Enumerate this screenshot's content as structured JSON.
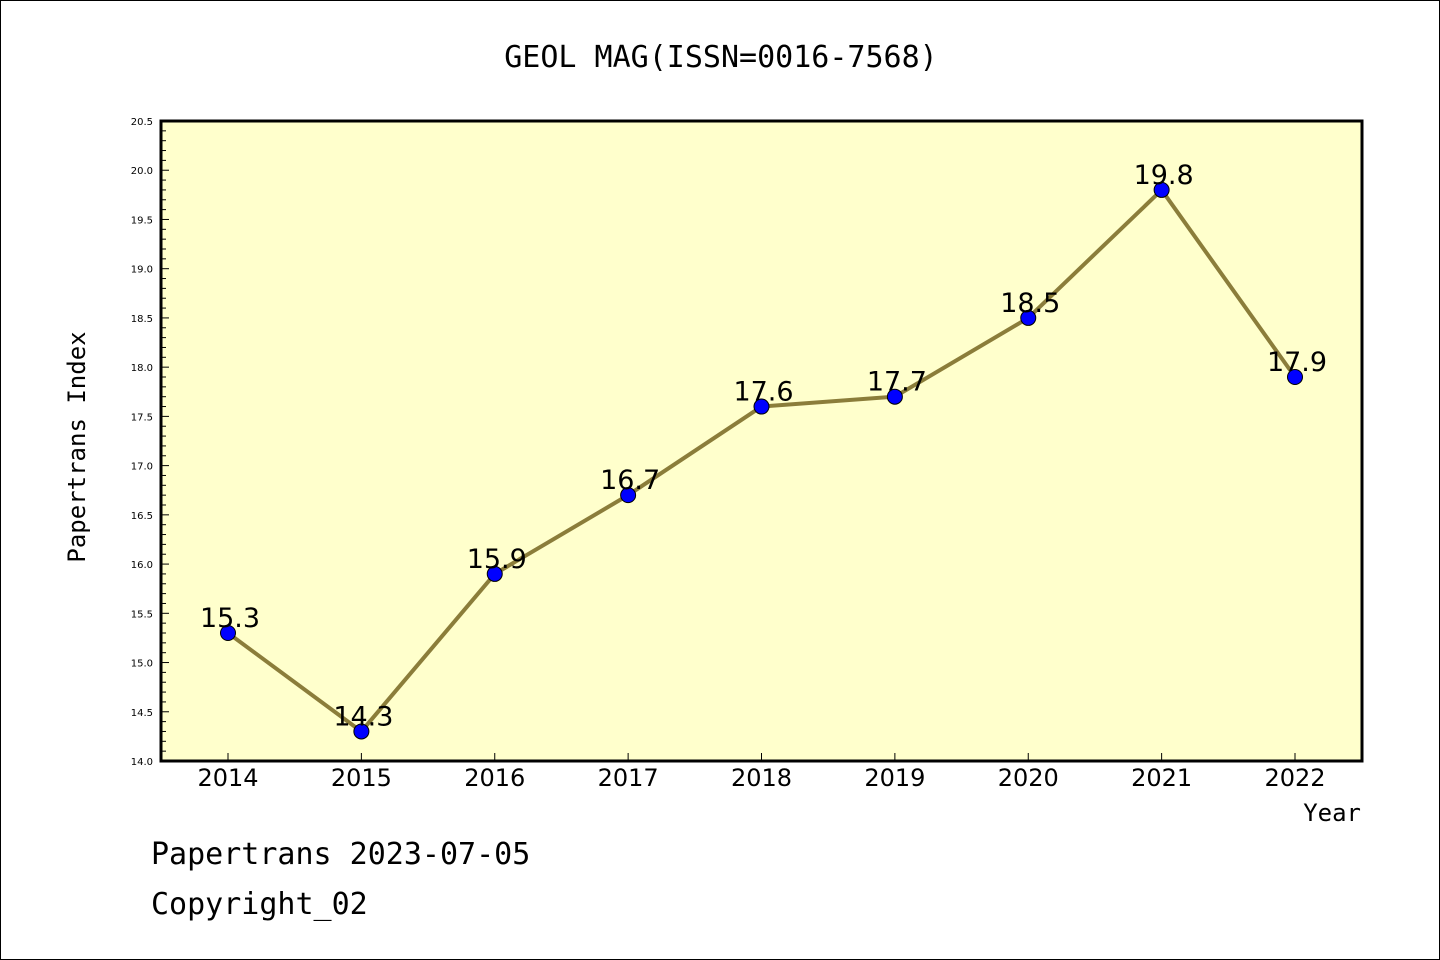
{
  "chart_data": {
    "type": "line",
    "title": "GEOL MAG(ISSN=0016-7568)",
    "xlabel": "Year",
    "ylabel": "Papertrans Index",
    "categories": [
      "2014",
      "2015",
      "2016",
      "2017",
      "2018",
      "2019",
      "2020",
      "2021",
      "2022"
    ],
    "values": [
      15.3,
      14.3,
      15.9,
      16.7,
      17.6,
      17.7,
      18.5,
      19.8,
      17.9
    ],
    "data_labels": [
      "15.3",
      "14.3",
      "15.9",
      "16.7",
      "17.6",
      "17.7",
      "18.5",
      "19.8",
      "17.9"
    ],
    "ylim": [
      14.0,
      20.5
    ],
    "yticks": [
      "14.0",
      "14.5",
      "15.0",
      "15.5",
      "16.0",
      "16.5",
      "17.0",
      "17.5",
      "18.0",
      "18.5",
      "19.0",
      "19.5",
      "20.0",
      "20.5"
    ],
    "grid": false,
    "legend": "none",
    "colors": {
      "plot_background": "#ffffcc",
      "line": "#8b7d3a",
      "marker": "#0000ff"
    }
  },
  "footer": {
    "line1": "Papertrans 2023-07-05",
    "line2": "Copyright_02"
  }
}
